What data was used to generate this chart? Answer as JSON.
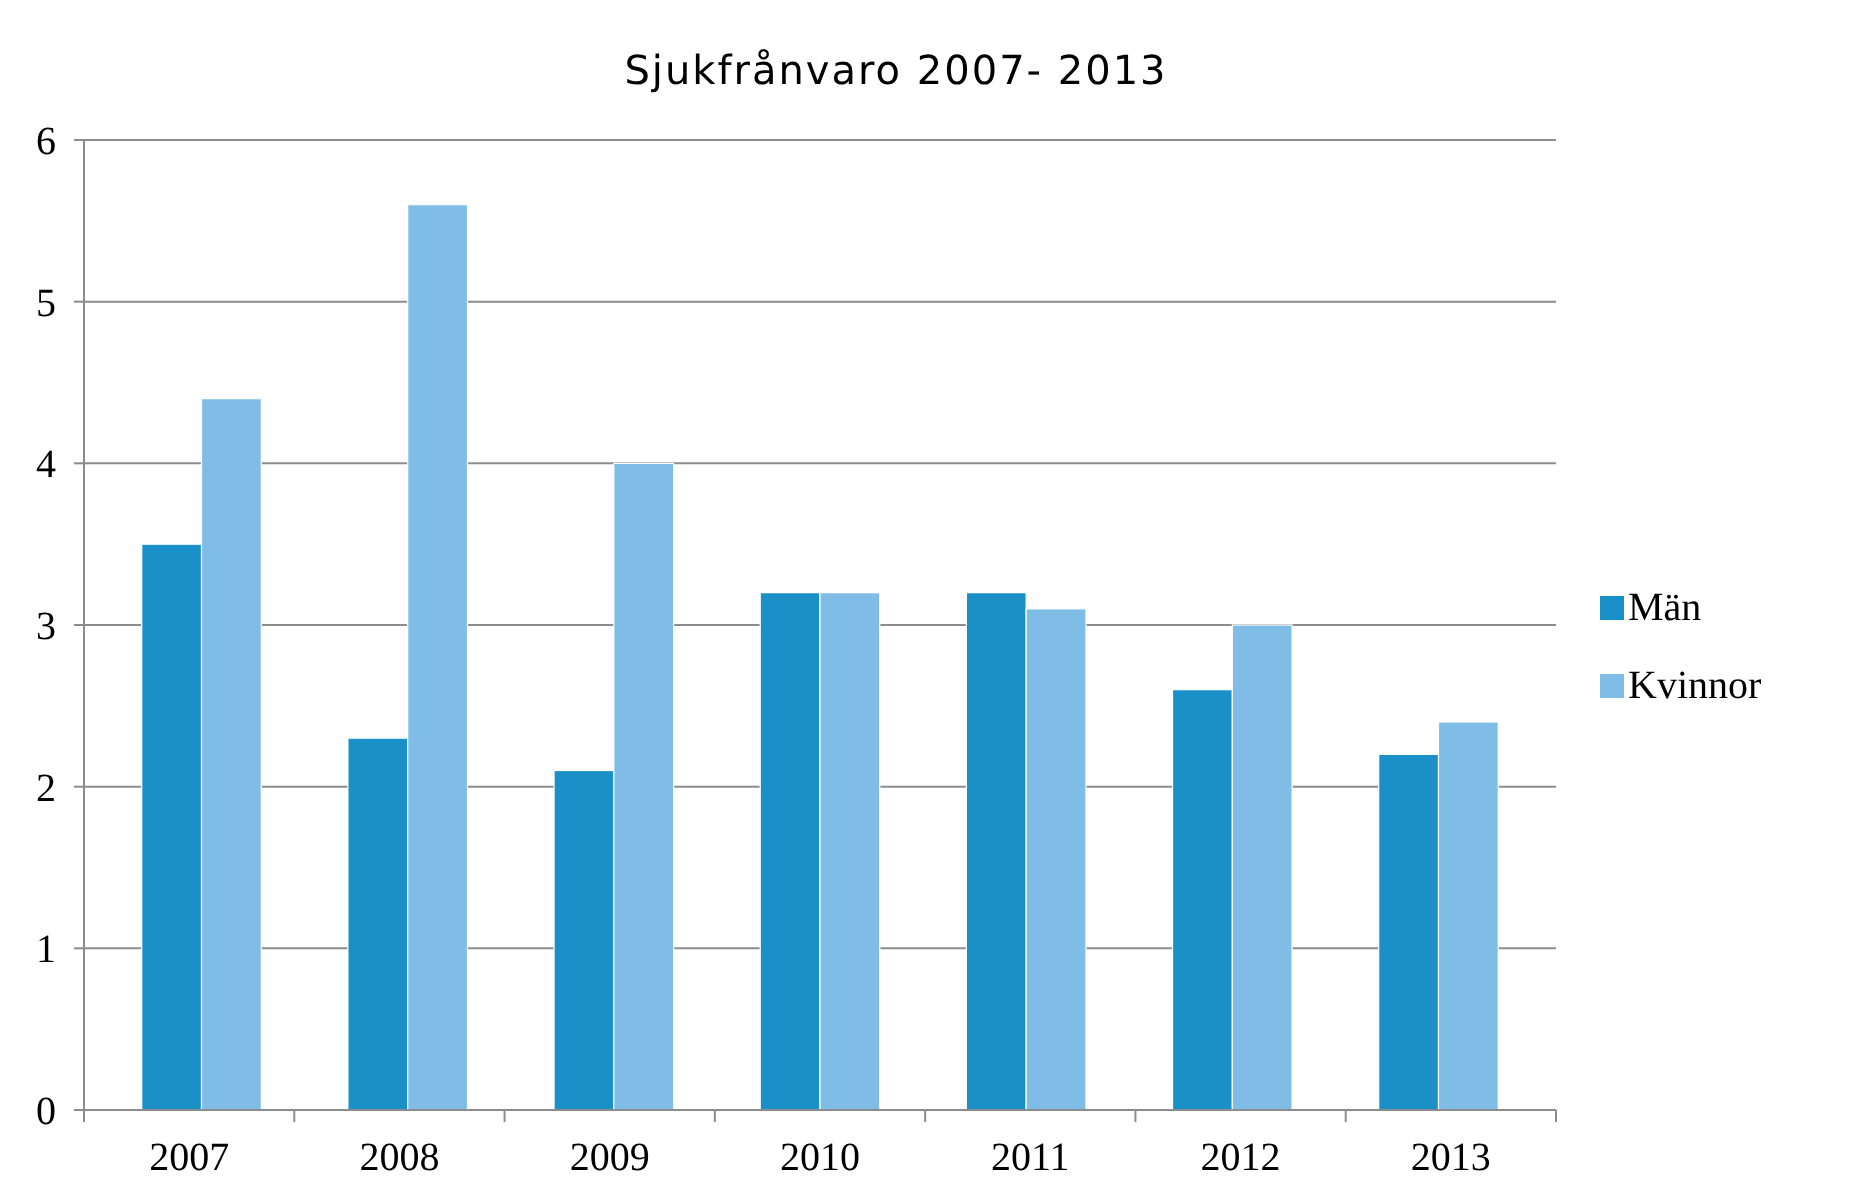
{
  "chart_data": {
    "type": "bar",
    "title": "Sjukfrånvaro 2007- 2013",
    "categories": [
      "2007",
      "2008",
      "2009",
      "2010",
      "2011",
      "2012",
      "2013"
    ],
    "series": [
      {
        "name": "Män",
        "color": "#1b8fc8",
        "values": [
          3.5,
          2.3,
          2.1,
          3.2,
          3.2,
          2.6,
          2.2
        ]
      },
      {
        "name": "Kvinnor",
        "color": "#7fbde6",
        "values": [
          4.4,
          5.6,
          4.0,
          3.2,
          3.1,
          3.0,
          2.4
        ]
      }
    ],
    "ylim": [
      0,
      6
    ],
    "yticks": [
      0,
      1,
      2,
      3,
      4,
      5,
      6
    ],
    "grid": "y",
    "legend": "right"
  }
}
